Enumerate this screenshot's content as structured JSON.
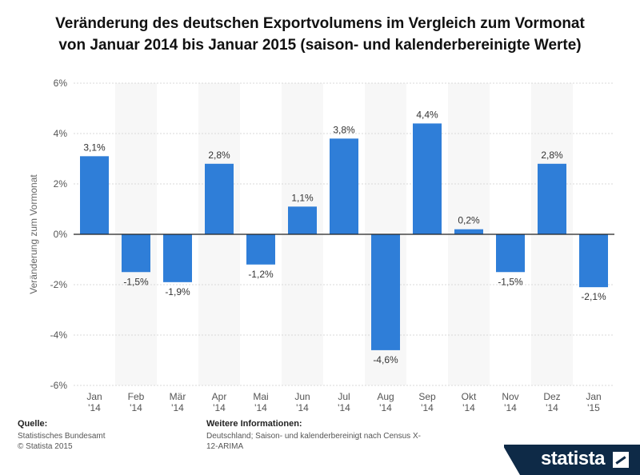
{
  "title": "Veränderung des deutschen Exportvolumens im Vergleich zum Vormonat von Januar 2014 bis Januar 2015 (saison- und kalenderbereinigte Werte)",
  "chart_data": {
    "type": "bar",
    "title": "Veränderung des deutschen Exportvolumens im Vergleich zum Vormonat von Januar 2014 bis Januar 2015 (saison- und kalenderbereinigte Werte)",
    "ylabel": "Veränderung zum Vormonat",
    "xlabel": "",
    "ylim": [
      -6,
      6
    ],
    "yticks": [
      6,
      4,
      2,
      0,
      -2,
      -4,
      -6
    ],
    "ytick_labels": [
      "6%",
      "4%",
      "2%",
      "0%",
      "-2%",
      "-4%",
      "-6%"
    ],
    "categories": [
      [
        "Jan",
        "'14"
      ],
      [
        "Feb",
        "'14"
      ],
      [
        "Mär",
        "'14"
      ],
      [
        "Apr",
        "'14"
      ],
      [
        "Mai",
        "'14"
      ],
      [
        "Jun",
        "'14"
      ],
      [
        "Jul",
        "'14"
      ],
      [
        "Aug",
        "'14"
      ],
      [
        "Sep",
        "'14"
      ],
      [
        "Okt",
        "'14"
      ],
      [
        "Nov",
        "'14"
      ],
      [
        "Dez",
        "'14"
      ],
      [
        "Jan",
        "'15"
      ]
    ],
    "values": [
      3.1,
      -1.5,
      -1.9,
      2.8,
      -1.2,
      1.1,
      3.8,
      -4.6,
      4.4,
      0.2,
      -1.5,
      2.8,
      -2.1
    ],
    "data_labels": [
      "3,1%",
      "-1,5%",
      "-1,9%",
      "2,8%",
      "-1,2%",
      "1,1%",
      "3,8%",
      "-4,6%",
      "4,4%",
      "0,2%",
      "-1,5%",
      "2,8%",
      "-2,1%"
    ],
    "bar_color": "#2f7ed8",
    "grid": true
  },
  "footer": {
    "source_label": "Quelle:",
    "source_lines": [
      "Statistisches Bundesamt",
      "© Statista 2015"
    ],
    "info_label": "Weitere Informationen:",
    "info_lines": [
      "Deutschland; Saison- und kalenderbereinigt nach Census X-",
      "12-ARIMA"
    ]
  },
  "brand": {
    "name": "statista",
    "icon": "statista-logo-icon"
  }
}
